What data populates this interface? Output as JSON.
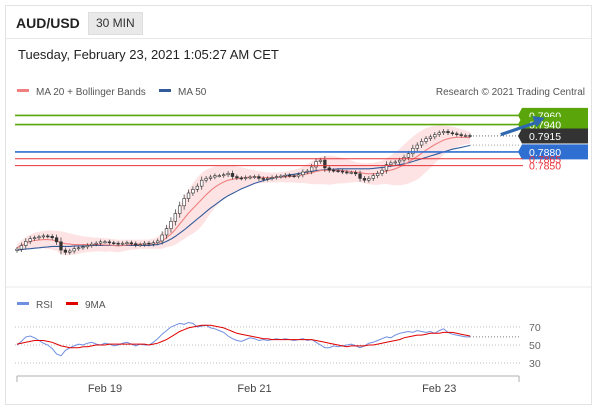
{
  "header": {
    "symbol": "AUD/USD",
    "interval": "30 MIN",
    "datetime": "Tuesday, February 23, 2021 1:05:27 AM CET"
  },
  "colors": {
    "resistance": "#5aa50a",
    "support": "#e8333b",
    "pivot": "#2f6fd1",
    "current": "#333333",
    "ma20": "#f08080",
    "ma50": "#335b9c",
    "bollinger_fill": "#fde3e3",
    "rsi": "#6f8fe0",
    "rsi_ma": "#e00000",
    "arrow": "#2e68b0"
  },
  "chart_data": [
    {
      "type": "line",
      "title": "AUD/USD 30 MIN",
      "legend": [
        {
          "name": "MA 20 + Bollinger Bands",
          "color": "#f08080"
        },
        {
          "name": "MA 50",
          "color": "#335b9c"
        }
      ],
      "credit": "Research © 2021 Trading Central",
      "x_ticks": [
        "Feb 19",
        "Feb 21",
        "Feb 23"
      ],
      "x_tick_positions": [
        20,
        54,
        96
      ],
      "ylim": [
        0.7595,
        0.7985
      ],
      "levels": [
        {
          "value": 0.796,
          "label": "0.7960",
          "kind": "resistance"
        },
        {
          "value": 0.794,
          "label": "0.7940",
          "kind": "resistance"
        },
        {
          "value": 0.7915,
          "label": "0.7915",
          "kind": "current"
        },
        {
          "value": 0.788,
          "label": "0.7880",
          "kind": "pivot"
        },
        {
          "value": 0.7865,
          "label": "0.7865",
          "kind": "support"
        },
        {
          "value": 0.785,
          "label": "0.7850",
          "kind": "support"
        }
      ],
      "arrow": {
        "from": [
          110,
          0.7918
        ],
        "to": [
          120,
          0.7955
        ]
      },
      "series": [
        {
          "name": "Price (close)",
          "values": [
            0.7667,
            0.7675,
            0.7684,
            0.769,
            0.7692,
            0.7694,
            0.7696,
            0.7695,
            0.7692,
            0.7683,
            0.7665,
            0.766,
            0.7663,
            0.7668,
            0.767,
            0.7672,
            0.7675,
            0.7678,
            0.768,
            0.7683,
            0.7683,
            0.7681,
            0.768,
            0.7679,
            0.768,
            0.7681,
            0.7679,
            0.7676,
            0.7677,
            0.768,
            0.7678,
            0.7681,
            0.7685,
            0.7698,
            0.7712,
            0.7728,
            0.7745,
            0.7762,
            0.7778,
            0.779,
            0.7798,
            0.7805,
            0.7818,
            0.7822,
            0.7825,
            0.7828,
            0.7828,
            0.783,
            0.7833,
            0.7826,
            0.7823,
            0.7822,
            0.7824,
            0.7825,
            0.7826,
            0.7822,
            0.782,
            0.7822,
            0.7824,
            0.7826,
            0.7827,
            0.7829,
            0.7828,
            0.7827,
            0.783,
            0.7836,
            0.7838,
            0.7847,
            0.7859,
            0.7862,
            0.7845,
            0.784,
            0.7839,
            0.7838,
            0.7836,
            0.7835,
            0.7835,
            0.7832,
            0.7822,
            0.7818,
            0.7822,
            0.7828,
            0.7833,
            0.784,
            0.7852,
            0.7856,
            0.7858,
            0.7862,
            0.7868,
            0.7876,
            0.7888,
            0.7895,
            0.7903,
            0.7909,
            0.7913,
            0.7918,
            0.7922,
            0.7925,
            0.7922,
            0.792,
            0.7918,
            0.7916,
            0.7916,
            0.7915
          ]
        },
        {
          "name": "MA 20",
          "values": [
            0.767,
            0.7675,
            0.768,
            0.7684,
            0.7686,
            0.7687,
            0.7688,
            0.7688,
            0.7687,
            0.7685,
            0.7681,
            0.7679,
            0.7678,
            0.7677,
            0.7677,
            0.7677,
            0.7677,
            0.7677,
            0.7677,
            0.7677,
            0.7676,
            0.7676,
            0.7675,
            0.7674,
            0.7675,
            0.7676,
            0.7677,
            0.7677,
            0.7678,
            0.7678,
            0.7678,
            0.7679,
            0.7681,
            0.7685,
            0.7692,
            0.77,
            0.771,
            0.7722,
            0.7734,
            0.7746,
            0.7756,
            0.7766,
            0.7776,
            0.7786,
            0.7795,
            0.7803,
            0.7809,
            0.7814,
            0.7818,
            0.782,
            0.7822,
            0.7823,
            0.7824,
            0.7825,
            0.7825,
            0.7825,
            0.7824,
            0.7824,
            0.7824,
            0.7824,
            0.7825,
            0.7825,
            0.7826,
            0.7827,
            0.7828,
            0.783,
            0.7832,
            0.7834,
            0.7837,
            0.7839,
            0.784,
            0.784,
            0.784,
            0.784,
            0.7839,
            0.7838,
            0.7837,
            0.7836,
            0.7835,
            0.7833,
            0.7832,
            0.7832,
            0.7833,
            0.7835,
            0.7838,
            0.784,
            0.7843,
            0.7847,
            0.7852,
            0.7858,
            0.7864,
            0.787,
            0.7877,
            0.7884,
            0.789,
            0.7896,
            0.7901,
            0.7906,
            0.7909,
            0.7911,
            0.7912,
            0.7912,
            0.7912,
            0.7911
          ]
        },
        {
          "name": "MA 50",
          "values": [
            0.7665,
            0.7666,
            0.7667,
            0.7668,
            0.7669,
            0.767,
            0.7671,
            0.7672,
            0.7673,
            0.7673,
            0.7673,
            0.7673,
            0.7673,
            0.7674,
            0.7674,
            0.7674,
            0.7674,
            0.7675,
            0.7675,
            0.7675,
            0.7675,
            0.7675,
            0.7675,
            0.7675,
            0.7675,
            0.7675,
            0.7675,
            0.7675,
            0.7675,
            0.7675,
            0.7675,
            0.7676,
            0.7677,
            0.768,
            0.7684,
            0.7689,
            0.7695,
            0.7702,
            0.7709,
            0.7717,
            0.7725,
            0.7733,
            0.7741,
            0.7749,
            0.7757,
            0.7764,
            0.7771,
            0.7778,
            0.7784,
            0.7789,
            0.7794,
            0.7799,
            0.7803,
            0.7807,
            0.7811,
            0.7814,
            0.7817,
            0.782,
            0.7822,
            0.7824,
            0.7826,
            0.7828,
            0.783,
            0.7831,
            0.7833,
            0.7834,
            0.7836,
            0.7837,
            0.7839,
            0.784,
            0.7841,
            0.7842,
            0.7842,
            0.7843,
            0.7843,
            0.7843,
            0.7843,
            0.7843,
            0.7843,
            0.7843,
            0.7843,
            0.7844,
            0.7845,
            0.7846,
            0.7847,
            0.7849,
            0.785,
            0.7852,
            0.7854,
            0.7856,
            0.7859,
            0.7862,
            0.7865,
            0.7868,
            0.7871,
            0.7874,
            0.7877,
            0.788,
            0.7883,
            0.7886,
            0.7888,
            0.789,
            0.7892,
            0.7894
          ]
        },
        {
          "name": "Bollinger upper",
          "values": [
            0.7678,
            0.7686,
            0.7693,
            0.7699,
            0.7703,
            0.7705,
            0.7707,
            0.7708,
            0.7708,
            0.7707,
            0.7706,
            0.7704,
            0.7702,
            0.7699,
            0.7697,
            0.7695,
            0.7694,
            0.7693,
            0.7692,
            0.7692,
            0.7691,
            0.769,
            0.7689,
            0.7688,
            0.7688,
            0.7688,
            0.7688,
            0.7688,
            0.7688,
            0.7688,
            0.7688,
            0.769,
            0.7694,
            0.7702,
            0.7713,
            0.7727,
            0.7743,
            0.7761,
            0.7779,
            0.7796,
            0.7811,
            0.7824,
            0.7834,
            0.7841,
            0.7845,
            0.7848,
            0.785,
            0.7851,
            0.7851,
            0.785,
            0.7848,
            0.7846,
            0.7844,
            0.7842,
            0.784,
            0.7838,
            0.7836,
            0.7835,
            0.7835,
            0.7835,
            0.7836,
            0.7837,
            0.7839,
            0.7841,
            0.7844,
            0.7848,
            0.7853,
            0.7859,
            0.7865,
            0.7869,
            0.7871,
            0.7872,
            0.7871,
            0.7869,
            0.7867,
            0.7864,
            0.7861,
            0.7858,
            0.7856,
            0.7855,
            0.7855,
            0.7856,
            0.7858,
            0.7861,
            0.7866,
            0.7872,
            0.7879,
            0.7887,
            0.7896,
            0.7905,
            0.7913,
            0.7921,
            0.7927,
            0.7932,
            0.7935,
            0.7937,
            0.7938,
            0.7938,
            0.7937,
            0.7935,
            0.7933,
            0.793,
            0.7927,
            0.7924
          ]
        },
        {
          "name": "Bollinger lower",
          "values": [
            0.7662,
            0.7664,
            0.7667,
            0.7669,
            0.7669,
            0.7669,
            0.7669,
            0.7668,
            0.7666,
            0.7663,
            0.7656,
            0.7654,
            0.7654,
            0.7655,
            0.7657,
            0.7659,
            0.766,
            0.7661,
            0.7662,
            0.7662,
            0.7661,
            0.7662,
            0.7661,
            0.766,
            0.7662,
            0.7664,
            0.7666,
            0.7666,
            0.7668,
            0.7668,
            0.7668,
            0.7668,
            0.7668,
            0.7668,
            0.7671,
            0.7673,
            0.7677,
            0.7683,
            0.7689,
            0.7696,
            0.7701,
            0.7708,
            0.7718,
            0.7731,
            0.7745,
            0.7758,
            0.7768,
            0.7777,
            0.7785,
            0.779,
            0.7796,
            0.78,
            0.7804,
            0.7808,
            0.781,
            0.7812,
            0.7812,
            0.7813,
            0.7813,
            0.7813,
            0.7814,
            0.7813,
            0.7813,
            0.7813,
            0.7812,
            0.7812,
            0.7811,
            0.7809,
            0.7809,
            0.7809,
            0.7809,
            0.7808,
            0.7809,
            0.7811,
            0.7811,
            0.7812,
            0.7813,
            0.7814,
            0.7814,
            0.7811,
            0.7809,
            0.7808,
            0.7808,
            0.7809,
            0.781,
            0.7808,
            0.7807,
            0.7807,
            0.7808,
            0.7811,
            0.7815,
            0.7819,
            0.7827,
            0.7836,
            0.7845,
            0.7855,
            0.7864,
            0.7874,
            0.7881,
            0.7887,
            0.7891,
            0.7894,
            0.7897,
            0.7898
          ]
        }
      ]
    },
    {
      "type": "line",
      "legend": [
        {
          "name": "RSI",
          "color": "#6f8fe0"
        },
        {
          "name": "9MA",
          "color": "#e00000"
        }
      ],
      "ylim": [
        20,
        80
      ],
      "y_ticks": [
        70,
        50,
        30
      ],
      "series": [
        {
          "name": "RSI",
          "values": [
            50,
            54,
            59,
            60,
            58,
            55,
            52,
            50,
            46,
            40,
            38,
            44,
            47,
            49,
            51,
            50,
            52,
            53,
            51,
            50,
            52,
            51,
            49,
            50,
            52,
            53,
            51,
            49,
            51,
            50,
            50,
            53,
            57,
            62,
            66,
            70,
            72,
            74,
            73,
            75,
            74,
            70,
            71,
            72,
            69,
            68,
            66,
            64,
            60,
            57,
            55,
            54,
            56,
            58,
            57,
            55,
            56,
            55,
            56,
            57,
            56,
            57,
            56,
            55,
            56,
            57,
            55,
            56,
            53,
            50,
            47,
            47,
            49,
            48,
            49,
            50,
            51,
            49,
            47,
            49,
            52,
            53,
            55,
            57,
            59,
            58,
            61,
            63,
            64,
            65,
            64,
            66,
            65,
            64,
            65,
            63,
            66,
            68,
            64,
            62,
            61,
            60,
            59,
            59
          ]
        },
        {
          "name": "9MA",
          "values": [
            51,
            52,
            53,
            54,
            55,
            55,
            55,
            54,
            53,
            51,
            49,
            48,
            47,
            47,
            47,
            48,
            48,
            49,
            50,
            50,
            50,
            51,
            51,
            51,
            51,
            51,
            51,
            51,
            51,
            51,
            50,
            51,
            52,
            54,
            56,
            59,
            62,
            65,
            67,
            69,
            70,
            71,
            72,
            72,
            72,
            71,
            70,
            69,
            67,
            65,
            63,
            62,
            61,
            60,
            59,
            58,
            57,
            57,
            56,
            56,
            56,
            56,
            56,
            56,
            56,
            56,
            56,
            56,
            55,
            54,
            53,
            52,
            51,
            50,
            49,
            48,
            49,
            49,
            49,
            49,
            50,
            50,
            51,
            52,
            53,
            54,
            55,
            56,
            58,
            59,
            60,
            61,
            61,
            62,
            63,
            63,
            63,
            64,
            64,
            64,
            63,
            62,
            61,
            60
          ]
        }
      ]
    }
  ]
}
